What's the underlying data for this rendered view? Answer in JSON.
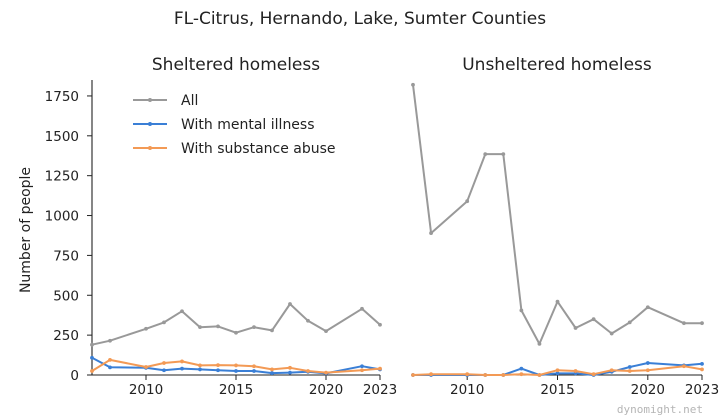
{
  "title": "FL-Citrus, Hernando, Lake, Sumter Counties",
  "watermark": "dynomight.net",
  "colors": {
    "all": "#999999",
    "mental": "#3a7fd6",
    "substance": "#f39a55"
  },
  "chart_data": [
    {
      "type": "line",
      "title": "Sheltered homeless",
      "ylabel": "Number of people",
      "xlim": [
        2007,
        2023
      ],
      "ylim": [
        0,
        1850
      ],
      "xticks": [
        2010,
        2015,
        2020,
        2023
      ],
      "yticks": [
        0,
        250,
        500,
        750,
        1000,
        1250,
        1500,
        1750
      ],
      "legend": "top-left",
      "x": [
        2007,
        2008,
        2010,
        2011,
        2012,
        2013,
        2014,
        2015,
        2016,
        2017,
        2018,
        2019,
        2020,
        2022,
        2023
      ],
      "series": [
        {
          "name": "All",
          "color_key": "all",
          "values": [
            190,
            215,
            290,
            330,
            400,
            300,
            305,
            265,
            300,
            280,
            445,
            340,
            275,
            415,
            315
          ]
        },
        {
          "name": "With mental illness",
          "color_key": "mental",
          "values": [
            108,
            48,
            45,
            30,
            40,
            35,
            30,
            25,
            25,
            12,
            15,
            20,
            10,
            55,
            35
          ]
        },
        {
          "name": "With substance abuse",
          "color_key": "substance",
          "values": [
            25,
            95,
            50,
            75,
            85,
            60,
            62,
            60,
            55,
            35,
            45,
            25,
            15,
            30,
            40
          ]
        }
      ]
    },
    {
      "type": "line",
      "title": "Unsheltered homeless",
      "xlim": [
        2007,
        2023
      ],
      "ylim": [
        0,
        1850
      ],
      "xticks": [
        2010,
        2015,
        2020,
        2023
      ],
      "x": [
        2007,
        2008,
        2010,
        2011,
        2012,
        2013,
        2014,
        2015,
        2016,
        2017,
        2018,
        2019,
        2020,
        2022,
        2023
      ],
      "series": [
        {
          "name": "All",
          "color_key": "all",
          "values": [
            1820,
            890,
            1090,
            1385,
            1385,
            405,
            195,
            460,
            295,
            350,
            260,
            330,
            425,
            325,
            325
          ]
        },
        {
          "name": "With mental illness",
          "color_key": "mental",
          "values": [
            0,
            0,
            0,
            0,
            0,
            40,
            0,
            10,
            10,
            0,
            20,
            50,
            75,
            60,
            70
          ]
        },
        {
          "name": "With substance abuse",
          "color_key": "substance",
          "values": [
            0,
            5,
            5,
            0,
            0,
            5,
            0,
            30,
            25,
            5,
            30,
            25,
            30,
            55,
            35
          ]
        }
      ]
    }
  ]
}
